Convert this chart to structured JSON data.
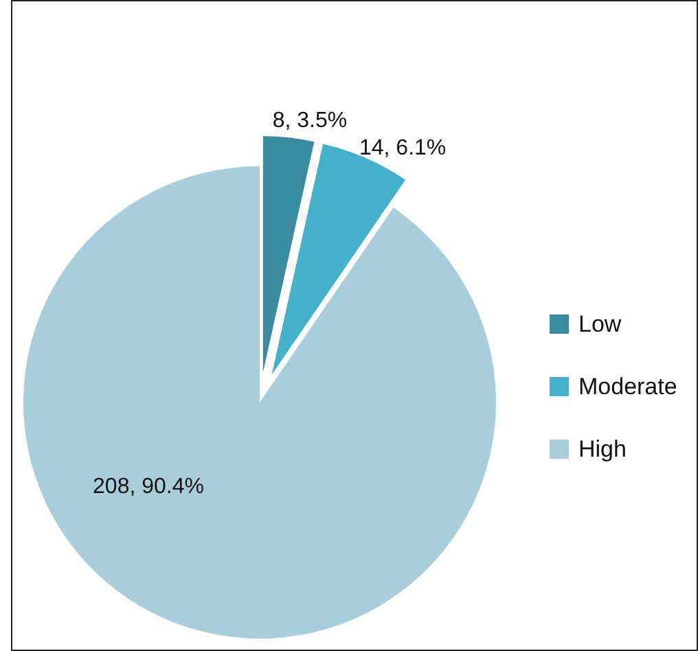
{
  "chart_data": {
    "type": "pie",
    "categories": [
      "Low",
      "Moderate",
      "High"
    ],
    "values": [
      8,
      14,
      208
    ],
    "colors": [
      "#3a8aa2",
      "#45b0ca",
      "#a9cedb"
    ],
    "value_labels": [
      "8, 3.5%",
      "14, 6.1%",
      "208, 90.4%"
    ],
    "legend": "right"
  }
}
